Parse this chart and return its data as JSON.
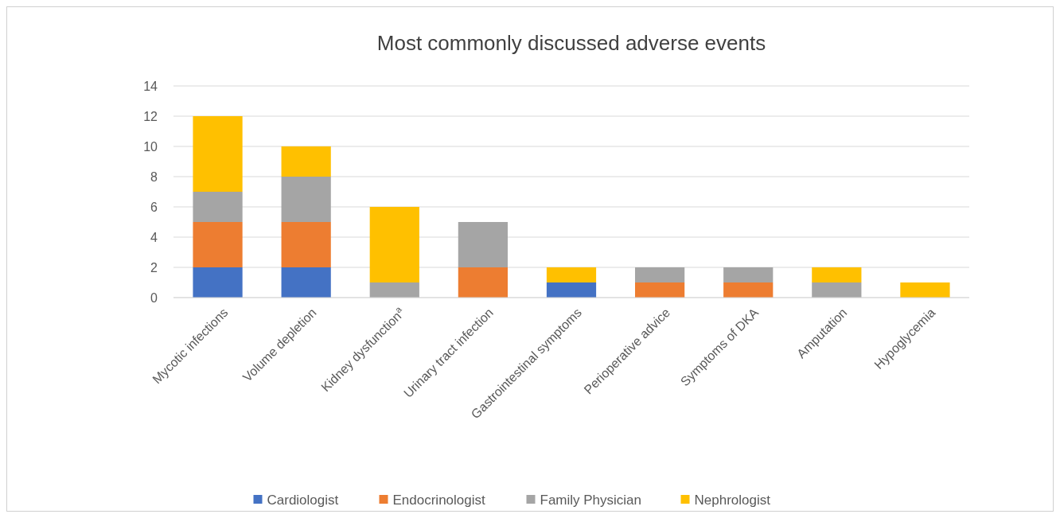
{
  "chart_data": {
    "type": "bar",
    "title": "Most commonly discussed adverse events",
    "stacked": true,
    "categories": [
      "Mycotic infections",
      "Volume depletion",
      "Kidney dysfunction$^{a}$",
      "Urinary tract infection",
      "Gastrointestinal symptoms",
      "Perioperative advice",
      "Symptoms of DKA",
      "Amputation",
      "Hypoglycemia"
    ],
    "series": [
      {
        "name": "Cardiologist",
        "color": "#4472c4",
        "values": [
          2,
          2,
          0,
          0,
          1,
          0,
          0,
          0,
          0
        ]
      },
      {
        "name": "Endocrinologist",
        "color": "#ed7d31",
        "values": [
          3,
          3,
          0,
          2,
          0,
          1,
          1,
          0,
          0
        ]
      },
      {
        "name": "Family Physician",
        "color": "#a5a5a5",
        "values": [
          2,
          3,
          1,
          3,
          0,
          1,
          1,
          1,
          0
        ]
      },
      {
        "name": "Nephrologist",
        "color": "#ffc000",
        "values": [
          5,
          2,
          5,
          0,
          1,
          0,
          0,
          1,
          1
        ]
      }
    ],
    "ylim": [
      0,
      14
    ],
    "yticks": [
      0,
      2,
      4,
      6,
      8,
      10,
      12,
      14
    ],
    "grid": "y",
    "legend": "bottom"
  }
}
